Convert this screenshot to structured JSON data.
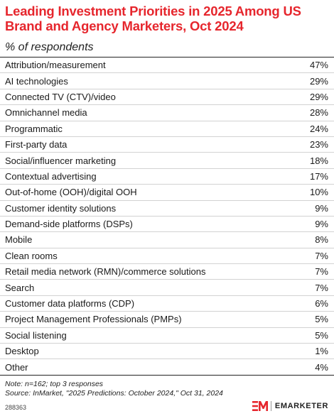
{
  "title": "Leading Investment Priorities in 2025 Among US Brand and Agency Marketers, Oct 2024",
  "subtitle": "% of respondents",
  "chart_data": {
    "type": "table",
    "title": "Leading Investment Priorities in 2025 Among US Brand and Agency Marketers, Oct 2024",
    "subtitle": "% of respondents",
    "columns": [
      "",
      ""
    ],
    "rows": [
      {
        "label": "Attribution/measurement",
        "value": 47,
        "display": "47%"
      },
      {
        "label": "AI technologies",
        "value": 29,
        "display": "29%"
      },
      {
        "label": "Connected TV (CTV)/video",
        "value": 29,
        "display": "29%"
      },
      {
        "label": "Omnichannel media",
        "value": 28,
        "display": "28%"
      },
      {
        "label": "Programmatic",
        "value": 24,
        "display": "24%"
      },
      {
        "label": "First-party data",
        "value": 23,
        "display": "23%"
      },
      {
        "label": "Social/influencer marketing",
        "value": 18,
        "display": "18%"
      },
      {
        "label": "Contextual advertising",
        "value": 17,
        "display": "17%"
      },
      {
        "label": "Out-of-home (OOH)/digital OOH",
        "value": 10,
        "display": "10%"
      },
      {
        "label": "Customer identity solutions",
        "value": 9,
        "display": "9%"
      },
      {
        "label": "Demand-side platforms (DSPs)",
        "value": 9,
        "display": "9%"
      },
      {
        "label": "Mobile",
        "value": 8,
        "display": "8%"
      },
      {
        "label": "Clean rooms",
        "value": 7,
        "display": "7%"
      },
      {
        "label": "Retail media network (RMN)/commerce solutions",
        "value": 7,
        "display": "7%"
      },
      {
        "label": "Search",
        "value": 7,
        "display": "7%"
      },
      {
        "label": "Customer data platforms (CDP)",
        "value": 6,
        "display": "6%"
      },
      {
        "label": "Project Management Professionals (PMPs)",
        "value": 5,
        "display": "5%"
      },
      {
        "label": "Social listening",
        "value": 5,
        "display": "5%"
      },
      {
        "label": "Desktop",
        "value": 1,
        "display": "1%"
      },
      {
        "label": "Other",
        "value": 4,
        "display": "4%"
      }
    ]
  },
  "notes": {
    "note": "Note: n=162; top 3 responses",
    "source": "Source: InMarket, \"2025 Predictions: October 2024,\" Oct 31, 2024"
  },
  "footer": {
    "chart_id": "288363",
    "brand": "EMARKETER"
  },
  "colors": {
    "title": "#e6262d",
    "text": "#1a1a1a",
    "rule": "#d2d2d2"
  }
}
